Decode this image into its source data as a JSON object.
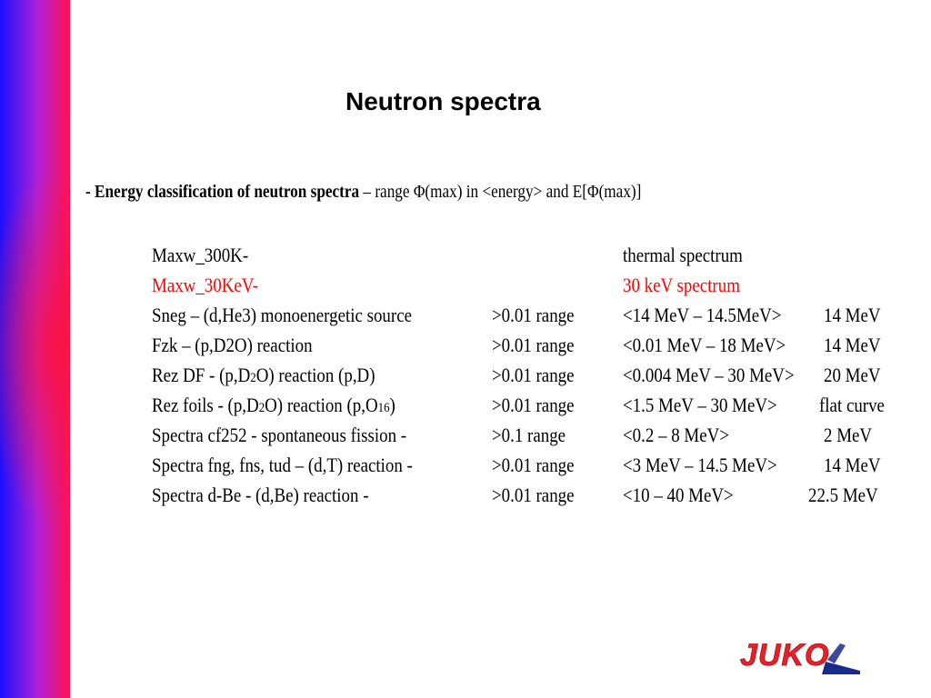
{
  "title": "Neutron spectra",
  "subtitle": {
    "bold": "- Energy classification of neutron spectra",
    "rest": " –   range Φ(max) in <energy> and E[Φ(max)]"
  },
  "rows": [
    {
      "c1": "Maxw_300K-",
      "c2": "",
      "c3": "thermal spectrum",
      "c4": ""
    },
    {
      "c1": "Maxw_30KeV-",
      "c2": "",
      "c3": "30 keV spectrum",
      "c4": ""
    },
    {
      "c1": "Sneg – (d,He3) monoenergetic source",
      "c2": ">0.01 range",
      "c3": "<14 MeV – 14.5MeV>",
      "c4": "14 MeV"
    },
    {
      "c1": "Fzk –  (p,D2O) reaction",
      "c2": ">0.01 range",
      "c3": "<0.01 MeV – 18 MeV>",
      "c4": "14 MeV"
    },
    {
      "c1a": "Rez DF - (p,D",
      "c1sub": "2",
      "c1b": "O) reaction  (p,D)",
      "c2": ">0.01 range",
      "c3": "<0.004 MeV – 30 MeV>",
      "c4": "20 MeV"
    },
    {
      "c1a": "Rez foils - (p,D",
      "c1sub": "2",
      "c1b": "O) reaction (p,O",
      "c1sub2": "16",
      "c1c": ")",
      "c2": ">0.01 range",
      "c3": "<1.5 MeV – 30 MeV>",
      "c4": "flat curve"
    },
    {
      "c1": "Spectra cf252 -  spontaneous fission -",
      "c2": ">0.1   range",
      "c3": "<0.2 – 8 MeV>",
      "c4": "2 MeV"
    },
    {
      "c1": "Spectra fng, fns, tud – (d,T) reaction -",
      "c2": ">0.01 range",
      "c3": "<3 MeV – 14.5 MeV>",
      "c4": "14 MeV"
    },
    {
      "c1": "Spectra d-Be -  (d,Be) reaction  -",
      "c2": ">0.01 range",
      "c3": "<10 – 40 MeV>",
      "c4": "22.5 MeV"
    }
  ],
  "logo": {
    "text": "JUKO",
    "color": "#e8202a",
    "accent": "#1a2a8a"
  }
}
